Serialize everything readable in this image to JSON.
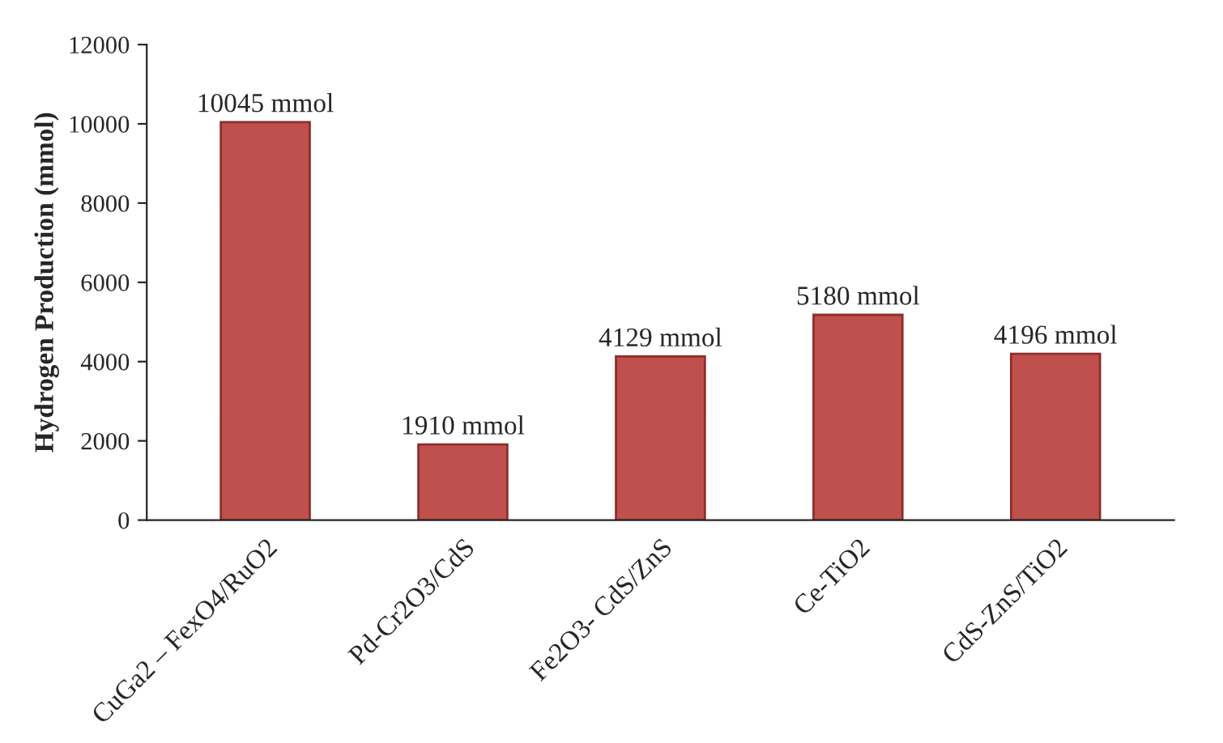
{
  "chart_data": {
    "type": "bar",
    "ylabel": "Hydrogen Production (mmol)",
    "categories": [
      "CuGa2 – FexO4/RuO2",
      "Pd-Cr2O3/CdS",
      "Fe2O3- CdS/ZnS",
      "Ce-TiO2",
      "CdS-ZnS/TiO2"
    ],
    "values": [
      10045,
      1910,
      4129,
      5180,
      4196
    ],
    "value_labels": [
      "10045 mmol",
      "1910 mmol",
      "4129 mmol",
      "5180 mmol",
      "4196 mmol"
    ],
    "color": "#c0504d",
    "ylim": [
      0,
      12000
    ],
    "yticks": [
      0,
      2000,
      4000,
      6000,
      8000,
      10000,
      12000
    ],
    "grid": false,
    "legend": false
  }
}
